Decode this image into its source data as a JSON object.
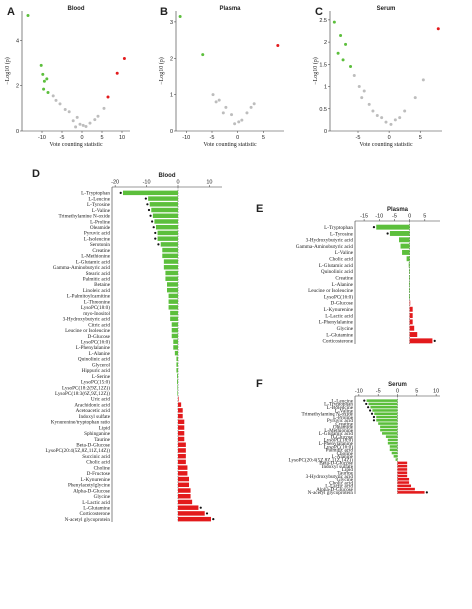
{
  "figure": {
    "panel_letters": [
      "A",
      "B",
      "C",
      "D",
      "E",
      "F"
    ]
  },
  "chart_data": [
    {
      "panel": "A",
      "type": "scatter",
      "title": "Blood",
      "xlabel": "Vote counting statistic",
      "ylabel": "−Log10 (p)",
      "xlim": [
        -15,
        12
      ],
      "ylim": [
        0,
        5.3
      ],
      "xticks": [
        -10,
        -5,
        0,
        5,
        10
      ],
      "yticks": [
        0,
        2,
        4
      ],
      "colors": {
        "down": "#5cbf3c",
        "up": "#e31a1c",
        "ns": "#bdbdbd"
      },
      "points": [
        {
          "x": -13.5,
          "y": 5.1,
          "g": "down"
        },
        {
          "x": -10.2,
          "y": 2.9,
          "g": "down"
        },
        {
          "x": -9.8,
          "y": 2.5,
          "g": "down"
        },
        {
          "x": -9.4,
          "y": 2.2,
          "g": "down"
        },
        {
          "x": -8.8,
          "y": 2.3,
          "g": "down"
        },
        {
          "x": -9.6,
          "y": 1.85,
          "g": "down"
        },
        {
          "x": -8.5,
          "y": 1.7,
          "g": "down"
        },
        {
          "x": -7.2,
          "y": 1.55,
          "g": "ns"
        },
        {
          "x": -6.5,
          "y": 1.35,
          "g": "ns"
        },
        {
          "x": -5.5,
          "y": 1.2,
          "g": "ns"
        },
        {
          "x": -4.2,
          "y": 0.95,
          "g": "ns"
        },
        {
          "x": -3.2,
          "y": 0.85,
          "g": "ns"
        },
        {
          "x": -1.2,
          "y": 0.6,
          "g": "ns"
        },
        {
          "x": -2.2,
          "y": 0.45,
          "g": "ns"
        },
        {
          "x": -0.5,
          "y": 0.3,
          "g": "ns"
        },
        {
          "x": 0.3,
          "y": 0.25,
          "g": "ns"
        },
        {
          "x": 1.0,
          "y": 0.2,
          "g": "ns"
        },
        {
          "x": -1.6,
          "y": 0.18,
          "g": "ns"
        },
        {
          "x": 2.0,
          "y": 0.35,
          "g": "ns"
        },
        {
          "x": 3.2,
          "y": 0.5,
          "g": "ns"
        },
        {
          "x": 4.0,
          "y": 0.65,
          "g": "ns"
        },
        {
          "x": 5.5,
          "y": 1.0,
          "g": "ns"
        },
        {
          "x": 6.5,
          "y": 1.5,
          "g": "up"
        },
        {
          "x": 8.8,
          "y": 2.55,
          "g": "up"
        },
        {
          "x": 10.6,
          "y": 3.2,
          "g": "up"
        }
      ]
    },
    {
      "panel": "B",
      "type": "scatter",
      "title": "Plasma",
      "xlabel": "Vote counting statistic",
      "ylabel": "−Log10 (p)",
      "xlim": [
        -12,
        9
      ],
      "ylim": [
        0,
        3.3
      ],
      "xticks": [
        -10,
        -5,
        0,
        5
      ],
      "yticks": [
        0,
        1,
        2,
        3
      ],
      "colors": {
        "down": "#5cbf3c",
        "up": "#e31a1c",
        "ns": "#bdbdbd"
      },
      "points": [
        {
          "x": -11.2,
          "y": 3.15,
          "g": "down"
        },
        {
          "x": -6.8,
          "y": 2.1,
          "g": "down"
        },
        {
          "x": -4.8,
          "y": 1.0,
          "g": "ns"
        },
        {
          "x": -4.2,
          "y": 0.8,
          "g": "ns"
        },
        {
          "x": -3.6,
          "y": 0.85,
          "g": "ns"
        },
        {
          "x": -2.8,
          "y": 0.5,
          "g": "ns"
        },
        {
          "x": -2.3,
          "y": 0.65,
          "g": "ns"
        },
        {
          "x": -1.2,
          "y": 0.45,
          "g": "ns"
        },
        {
          "x": -0.6,
          "y": 0.2,
          "g": "ns"
        },
        {
          "x": 0.2,
          "y": 0.25,
          "g": "ns"
        },
        {
          "x": 0.8,
          "y": 0.3,
          "g": "ns"
        },
        {
          "x": 1.8,
          "y": 0.5,
          "g": "ns"
        },
        {
          "x": 2.6,
          "y": 0.65,
          "g": "ns"
        },
        {
          "x": 3.2,
          "y": 0.75,
          "g": "ns"
        },
        {
          "x": 7.8,
          "y": 2.35,
          "g": "up"
        }
      ]
    },
    {
      "panel": "C",
      "type": "scatter",
      "title": "Serum",
      "xlabel": "Vote counting statistic",
      "ylabel": "−Log10 (p)",
      "xlim": [
        -9.5,
        8.5
      ],
      "ylim": [
        0,
        2.7
      ],
      "xticks": [
        -5,
        0,
        5
      ],
      "yticks": [
        0,
        0.5,
        1.0,
        1.5,
        2.0,
        2.5
      ],
      "colors": {
        "down": "#5cbf3c",
        "up": "#e31a1c",
        "ns": "#bdbdbd"
      },
      "points": [
        {
          "x": -8.8,
          "y": 2.45,
          "g": "down"
        },
        {
          "x": -7.8,
          "y": 2.15,
          "g": "down"
        },
        {
          "x": -7.0,
          "y": 1.95,
          "g": "down"
        },
        {
          "x": -8.2,
          "y": 1.75,
          "g": "down"
        },
        {
          "x": -7.4,
          "y": 1.6,
          "g": "down"
        },
        {
          "x": -6.2,
          "y": 1.45,
          "g": "down"
        },
        {
          "x": -5.6,
          "y": 1.25,
          "g": "ns"
        },
        {
          "x": -4.8,
          "y": 1.0,
          "g": "ns"
        },
        {
          "x": -4.0,
          "y": 0.9,
          "g": "ns"
        },
        {
          "x": -4.4,
          "y": 0.75,
          "g": "ns"
        },
        {
          "x": -3.2,
          "y": 0.6,
          "g": "ns"
        },
        {
          "x": -2.6,
          "y": 0.45,
          "g": "ns"
        },
        {
          "x": -1.9,
          "y": 0.35,
          "g": "ns"
        },
        {
          "x": -1.2,
          "y": 0.3,
          "g": "ns"
        },
        {
          "x": -0.5,
          "y": 0.2,
          "g": "ns"
        },
        {
          "x": 0.3,
          "y": 0.15,
          "g": "ns"
        },
        {
          "x": 1.0,
          "y": 0.25,
          "g": "ns"
        },
        {
          "x": 1.7,
          "y": 0.3,
          "g": "ns"
        },
        {
          "x": 2.5,
          "y": 0.45,
          "g": "ns"
        },
        {
          "x": 4.2,
          "y": 0.75,
          "g": "ns"
        },
        {
          "x": 5.5,
          "y": 1.15,
          "g": "ns"
        },
        {
          "x": 7.9,
          "y": 2.3,
          "g": "up"
        }
      ]
    },
    {
      "panel": "D",
      "type": "bar",
      "orientation": "horizontal",
      "title": "Blood",
      "xlim": [
        -21,
        14
      ],
      "xticks": [
        -20,
        -10,
        0,
        10
      ],
      "colors": {
        "neg": "#5cbf3c",
        "pos": "#e31a1c"
      },
      "bars": [
        {
          "label": "L-Tryptophan",
          "value": -17.5,
          "star": true
        },
        {
          "label": "L-Leucine",
          "value": -9.5,
          "star": true
        },
        {
          "label": "L-Tyrosine",
          "value": -9.0,
          "star": true
        },
        {
          "label": "L-Valine",
          "value": -8.5,
          "star": true
        },
        {
          "label": "Trimethylamine N-oxide",
          "value": -8.0,
          "star": true
        },
        {
          "label": "L-Proline",
          "value": -7.5,
          "star": true
        },
        {
          "label": "Oleamide",
          "value": -7.0,
          "star": true
        },
        {
          "label": "Pyruvic acid",
          "value": -6.5,
          "star": true
        },
        {
          "label": "L-Isoleucine",
          "value": -6.5,
          "star": true
        },
        {
          "label": "Serotonin",
          "value": -5.5,
          "star": true
        },
        {
          "label": "Creatine",
          "value": -5.0,
          "star": false
        },
        {
          "label": "L-Methionine",
          "value": -5.0,
          "star": false
        },
        {
          "label": "L-Glutamic acid",
          "value": -4.5,
          "star": false
        },
        {
          "label": "Gamma-Aminobutyric acid",
          "value": -4.5,
          "star": false
        },
        {
          "label": "Stearic acid",
          "value": -4.0,
          "star": false
        },
        {
          "label": "Palmitic acid",
          "value": -4.0,
          "star": false
        },
        {
          "label": "Betaine",
          "value": -3.5,
          "star": false
        },
        {
          "label": "Linoleic acid",
          "value": -3.5,
          "star": false
        },
        {
          "label": "L-Palmitoylcarnitine",
          "value": -3.0,
          "star": false
        },
        {
          "label": "L-Threonine",
          "value": -3.0,
          "star": false
        },
        {
          "label": "LysoPC(18:0)",
          "value": -3.0,
          "star": false
        },
        {
          "label": "myo-Inositol",
          "value": -2.5,
          "star": false
        },
        {
          "label": "3-Hydroxybutyric acid",
          "value": -2.5,
          "star": false
        },
        {
          "label": "Citric acid",
          "value": -2.0,
          "star": false
        },
        {
          "label": "Leucine or Isoleucine",
          "value": -2.0,
          "star": false
        },
        {
          "label": "D-Glucose",
          "value": -2.0,
          "star": false
        },
        {
          "label": "LysoPC(16:0)",
          "value": -1.5,
          "star": false
        },
        {
          "label": "L-Phenylalanine",
          "value": -1.5,
          "star": false
        },
        {
          "label": "L-Alanine",
          "value": -1.0,
          "star": false
        },
        {
          "label": "Quinolinic acid",
          "value": -0.5,
          "star": false
        },
        {
          "label": "Glycerol",
          "value": -0.5,
          "star": false
        },
        {
          "label": "Hippuric acid",
          "value": -0.5,
          "star": false
        },
        {
          "label": "L-Serine",
          "value": -0.3,
          "star": false
        },
        {
          "label": "LysoPC(15:0)",
          "value": -0.3,
          "star": false
        },
        {
          "label": "LysoPC(18:2(9Z,12Z))",
          "value": -0.2,
          "star": false
        },
        {
          "label": "LysoPC(18:3(6Z,9Z,12Z))",
          "value": -0.2,
          "star": false
        },
        {
          "label": "Uric acid",
          "value": 0.2,
          "star": false
        },
        {
          "label": "Arachidonic acid",
          "value": 1.0,
          "star": false
        },
        {
          "label": "Acetoacetic acid",
          "value": 1.5,
          "star": false
        },
        {
          "label": "Indoxyl sulfate",
          "value": 1.5,
          "star": false
        },
        {
          "label": "Kynurenine/tryptophan ratio",
          "value": 2.0,
          "star": false
        },
        {
          "label": "Lipid",
          "value": 2.0,
          "star": false
        },
        {
          "label": "Sphinganine",
          "value": 2.0,
          "star": false
        },
        {
          "label": "Taurine",
          "value": 2.0,
          "star": false
        },
        {
          "label": "Beta-D-Glucose",
          "value": 2.5,
          "star": false
        },
        {
          "label": "LysoPC(20:4(5Z,8Z,11Z,14Z))",
          "value": 2.5,
          "star": false
        },
        {
          "label": "Succinic acid",
          "value": 2.5,
          "star": false
        },
        {
          "label": "Cholic acid",
          "value": 2.5,
          "star": false
        },
        {
          "label": "Choline",
          "value": 3.0,
          "star": false
        },
        {
          "label": "D-Fructose",
          "value": 3.0,
          "star": false
        },
        {
          "label": "L-Kynurenine",
          "value": 3.5,
          "star": false
        },
        {
          "label": "Phenylacetylglycine",
          "value": 3.5,
          "star": false
        },
        {
          "label": "Alpha-D-Glucose",
          "value": 4.0,
          "star": false
        },
        {
          "label": "Glycine",
          "value": 4.0,
          "star": false
        },
        {
          "label": "L-Lactic acid",
          "value": 4.5,
          "star": false
        },
        {
          "label": "L-Glutamine",
          "value": 6.5,
          "star": true
        },
        {
          "label": "Corticosterone",
          "value": 8.5,
          "star": true
        },
        {
          "label": "N-acetyl glycoprotein",
          "value": 10.5,
          "star": true
        }
      ]
    },
    {
      "panel": "E",
      "type": "bar",
      "orientation": "horizontal",
      "title": "Plasma",
      "xlim": [
        -18,
        10
      ],
      "xticks": [
        -15,
        -10,
        -5,
        0,
        5
      ],
      "colors": {
        "neg": "#5cbf3c",
        "pos": "#e31a1c"
      },
      "bars": [
        {
          "label": "L-Tryptophan",
          "value": -11.0,
          "star": true
        },
        {
          "label": "L-Tyrosine",
          "value": -6.5,
          "star": true
        },
        {
          "label": "3-Hydroxybutyric acid",
          "value": -3.5,
          "star": false
        },
        {
          "label": "Gamma-Aminobutyric acid",
          "value": -3.0,
          "star": false
        },
        {
          "label": "L-Valine",
          "value": -2.5,
          "star": false
        },
        {
          "label": "Cholic acid",
          "value": -1.0,
          "star": false
        },
        {
          "label": "L-Glutamic acid",
          "value": -0.3,
          "star": false
        },
        {
          "label": "Quinolinic acid",
          "value": -0.2,
          "star": false
        },
        {
          "label": "Creatine",
          "value": -0.2,
          "star": false
        },
        {
          "label": "L-Alanine",
          "value": -0.2,
          "star": false
        },
        {
          "label": "Leucine or Isoleucine",
          "value": -0.2,
          "star": false
        },
        {
          "label": "LysoPC(16:0)",
          "value": -0.2,
          "star": false
        },
        {
          "label": "D-Glucose",
          "value": 0.2,
          "star": false
        },
        {
          "label": "L-Kynurenine",
          "value": 1.0,
          "star": false
        },
        {
          "label": "L-Lactic acid",
          "value": 1.0,
          "star": false
        },
        {
          "label": "L-Phenylalanine",
          "value": 1.0,
          "star": false
        },
        {
          "label": "Glycine",
          "value": 1.5,
          "star": false
        },
        {
          "label": "L-Glutamine",
          "value": 2.5,
          "star": false
        },
        {
          "label": "Corticosterone",
          "value": 7.5,
          "star": true
        }
      ]
    },
    {
      "panel": "F",
      "type": "bar",
      "orientation": "horizontal",
      "title": "Serum",
      "xlim": [
        -11,
        11
      ],
      "xticks": [
        -10,
        -5,
        0,
        5,
        10
      ],
      "colors": {
        "neg": "#5cbf3c",
        "pos": "#e31a1c"
      },
      "bars": [
        {
          "label": "L-Leucine",
          "value": -8.0,
          "star": true
        },
        {
          "label": "L-Tryptophan",
          "value": -7.5,
          "star": true
        },
        {
          "label": "L-Isoleucine",
          "value": -7.0,
          "star": true
        },
        {
          "label": "L-Valine",
          "value": -6.5,
          "star": true
        },
        {
          "label": "Trimethylamine N-oxide",
          "value": -6.0,
          "star": true
        },
        {
          "label": "L-Proline",
          "value": -5.5,
          "star": true
        },
        {
          "label": "Pyruvic acid",
          "value": -5.5,
          "star": true
        },
        {
          "label": "Creatine",
          "value": -5.0,
          "star": false
        },
        {
          "label": "Oleamide",
          "value": -4.5,
          "star": false
        },
        {
          "label": "L-Methionine",
          "value": -4.5,
          "star": false
        },
        {
          "label": "L-Glutamic acid",
          "value": -4.0,
          "star": false
        },
        {
          "label": "D-Glucose",
          "value": -3.0,
          "star": false
        },
        {
          "label": "LysoPC(18:0)",
          "value": -2.5,
          "star": false
        },
        {
          "label": "L-Phenylalanine",
          "value": -2.5,
          "star": false
        },
        {
          "label": "LysoPC(16:0)",
          "value": -2.0,
          "star": false
        },
        {
          "label": "Palmitic acid",
          "value": -2.0,
          "star": false
        },
        {
          "label": "Choline",
          "value": -1.5,
          "star": false
        },
        {
          "label": "L-Alanine",
          "value": -1.0,
          "star": false
        },
        {
          "label": "LysoPC(20:4(5Z,8Z,11Z,14Z))",
          "value": -0.5,
          "star": false
        },
        {
          "label": "Beta-D-Glucose",
          "value": 2.5,
          "star": false
        },
        {
          "label": "Indoxyl sulfate",
          "value": 2.5,
          "star": false
        },
        {
          "label": "Lipid",
          "value": 2.5,
          "star": false
        },
        {
          "label": "Taurine",
          "value": 2.5,
          "star": false
        },
        {
          "label": "3-Hydroxybutyric acid",
          "value": 2.5,
          "star": false
        },
        {
          "label": "Glycine",
          "value": 3.0,
          "star": false
        },
        {
          "label": "Cholic acid",
          "value": 3.0,
          "star": false
        },
        {
          "label": "L-Lactic acid",
          "value": 3.5,
          "star": false
        },
        {
          "label": "Alpha-D-Glucose",
          "value": 4.5,
          "star": false
        },
        {
          "label": "N-acetyl glycoprotein",
          "value": 7.0,
          "star": true
        }
      ]
    }
  ]
}
